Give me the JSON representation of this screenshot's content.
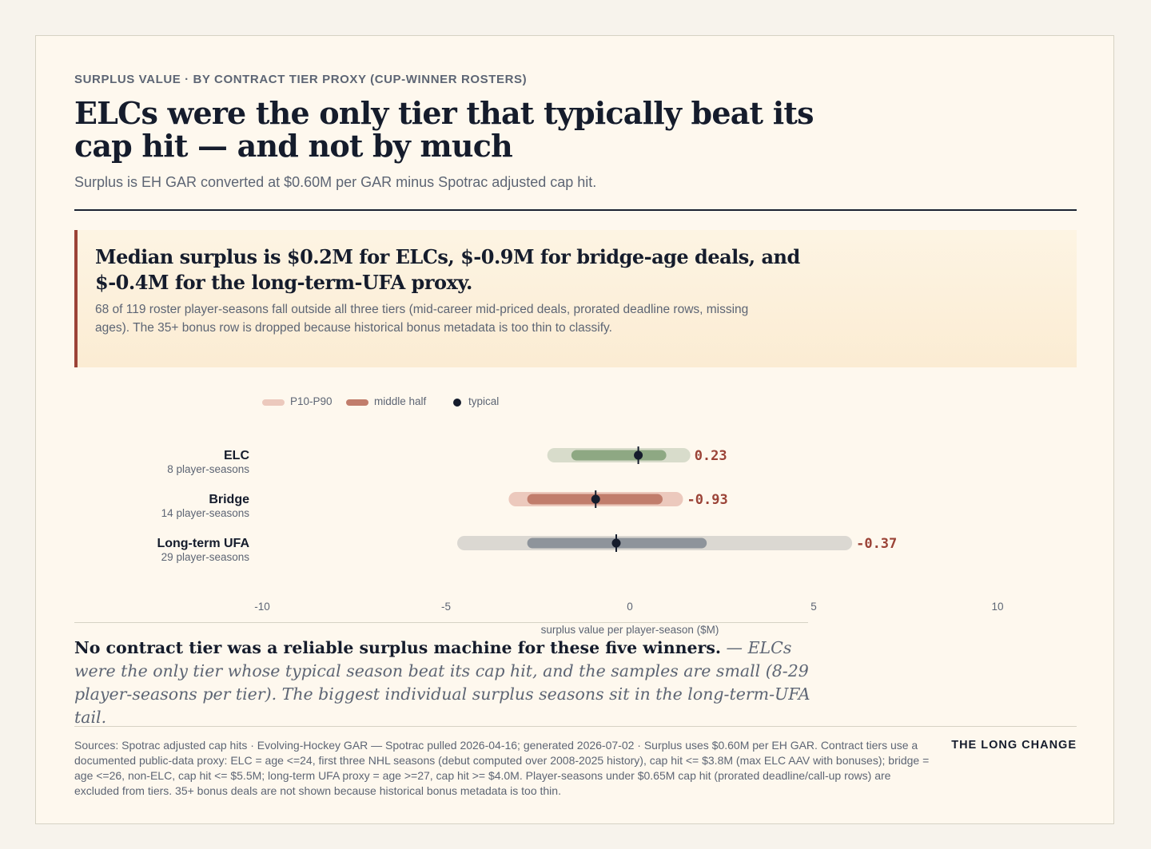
{
  "header": {
    "kicker": "SURPLUS VALUE · BY CONTRACT TIER PROXY (CUP-WINNER ROSTERS)",
    "title": "ELCs were the only tier that typically beat its cap hit — and not by much",
    "subtitle": "Surplus is EH GAR converted at $0.60M per GAR minus Spotrac adjusted cap hit."
  },
  "callout": {
    "headline": "Median surplus is $0.2M for ELCs, $-0.9M for bridge-age deals, and $-0.4M for the long-term-UFA proxy.",
    "body": "68 of 119 roster player-seasons fall outside all three tiers (mid-career mid-priced deals, prorated deadline rows, missing ages). The 35+ bonus row is dropped because historical bonus metadata is too thin to classify."
  },
  "legend": {
    "p10_p90": "P10-P90",
    "middle_half": "middle half",
    "typical": "typical"
  },
  "colors": {
    "accent": "#9b4337",
    "ink": "#151c2c",
    "elc_outer": "#d8dccb",
    "elc_inner": "#8ea883",
    "bridge_outer": "#ecc9bd",
    "bridge_inner": "#c17d6c",
    "ufa_outer": "#dbd8d2",
    "ufa_inner": "#8e949b"
  },
  "chart_data": {
    "type": "range-dot",
    "xlabel": "surplus value per player-season ($M)",
    "xlim": [
      -10,
      10
    ],
    "xticks": [
      -10,
      -5,
      0,
      5,
      10
    ],
    "value_labels": [
      "0.23",
      "-0.93",
      "-0.37"
    ],
    "rows": [
      {
        "name": "ELC",
        "sample": "8 player-seasons",
        "p10": -2.05,
        "p25": -1.45,
        "median": 0.23,
        "p75": 0.85,
        "p90": 1.45,
        "outer_color": "#d8dccb",
        "inner_color": "#8ea883"
      },
      {
        "name": "Bridge",
        "sample": "14 player-seasons",
        "p10": -3.1,
        "p25": -2.65,
        "median": -0.93,
        "p75": 0.75,
        "p90": 1.25,
        "outer_color": "#ecc9bd",
        "inner_color": "#c17d6c"
      },
      {
        "name": "Long-term UFA",
        "sample": "29 player-seasons",
        "p10": -4.5,
        "p25": -2.65,
        "median": -0.37,
        "p75": 1.95,
        "p90": 5.85,
        "outer_color": "#dbd8d2",
        "inner_color": "#8e949b"
      }
    ]
  },
  "conclusion": {
    "lead": "No contract tier was a reliable surplus machine for these five winners.",
    "rest": " — ELCs were the only tier whose typical season beat its cap hit, and the samples are small (8-29 player-seasons per tier). The biggest individual surplus seasons sit in the long-term-UFA tail."
  },
  "footer": {
    "sources": "Sources: Spotrac adjusted cap hits · Evolving-Hockey GAR — Spotrac pulled 2026-04-16; generated 2026-07-02 · Surplus uses $0.60M per EH GAR. Contract tiers use a documented public-data proxy: ELC = age <=24, first three NHL seasons (debut computed over 2008-2025 history), cap hit <= $3.8M (max ELC AAV with bonuses); bridge = age <=26, non-ELC, cap hit <= $5.5M; long-term UFA proxy = age >=27, cap hit >= $4.0M. Player-seasons under $0.65M cap hit (prorated deadline/call-up rows) are excluded from tiers. 35+ bonus deals are not shown because historical bonus metadata is too thin.",
    "brand": "THE LONG CHANGE"
  }
}
